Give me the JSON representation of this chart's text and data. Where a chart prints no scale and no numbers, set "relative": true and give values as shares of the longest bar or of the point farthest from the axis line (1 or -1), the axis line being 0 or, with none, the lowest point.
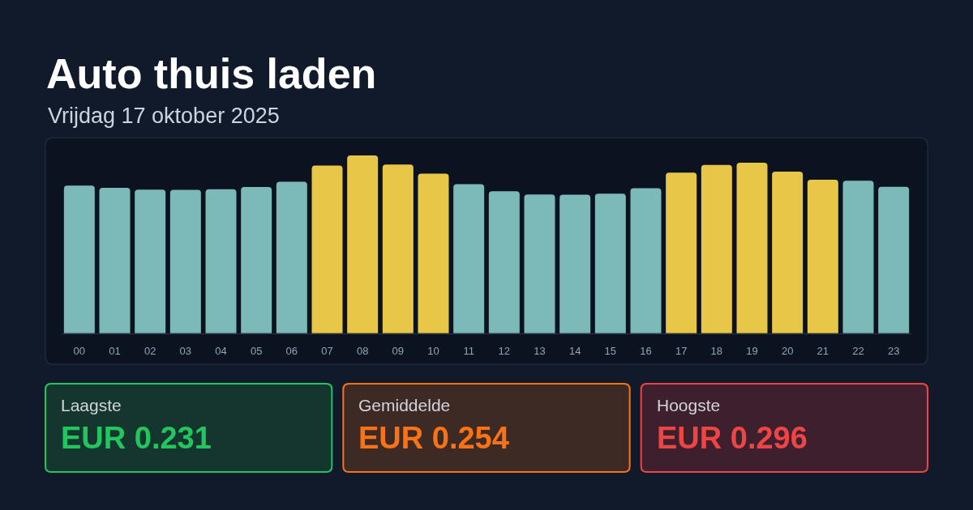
{
  "chart_data": [
    {
      "type": "bar",
      "title": "Auto thuis laden",
      "subtitle": "Vrijdag 17 oktober 2025",
      "relative": true,
      "categories": [
        "00",
        "01",
        "02",
        "03",
        "04",
        "05",
        "06",
        "07",
        "08",
        "09",
        "10",
        "11",
        "12",
        "13",
        "14",
        "15",
        "16",
        "17",
        "18",
        "19",
        "20",
        "21",
        "22",
        "23"
      ],
      "values": [
        0.831,
        0.818,
        0.808,
        0.807,
        0.81,
        0.823,
        0.852,
        0.944,
        1,
        0.949,
        0.898,
        0.839,
        0.799,
        0.781,
        0.78,
        0.785,
        0.816,
        0.904,
        0.947,
        0.959,
        0.909,
        0.864,
        0.858,
        0.824
      ],
      "colors": [
        "#7cb9b9",
        "#7cb9b9",
        "#7cb9b9",
        "#7cb9b9",
        "#7cb9b9",
        "#7cb9b9",
        "#7cb9b9",
        "#e8c648",
        "#e8c648",
        "#e8c648",
        "#e8c648",
        "#7cb9b9",
        "#7cb9b9",
        "#7cb9b9",
        "#7cb9b9",
        "#7cb9b9",
        "#7cb9b9",
        "#e8c648",
        "#e8c648",
        "#e8c648",
        "#e8c648",
        "#e8c648",
        "#7cb9b9",
        "#7cb9b9"
      ]
    },
    {
      "type": "other",
      "title": "Laagste",
      "annotations": [
        "EUR 0.231"
      ]
    },
    {
      "type": "other",
      "title": "Gemiddelde",
      "annotations": [
        "EUR 0.254"
      ]
    },
    {
      "type": "other",
      "title": "Hoogste",
      "annotations": [
        "EUR 0.296"
      ]
    }
  ]
}
